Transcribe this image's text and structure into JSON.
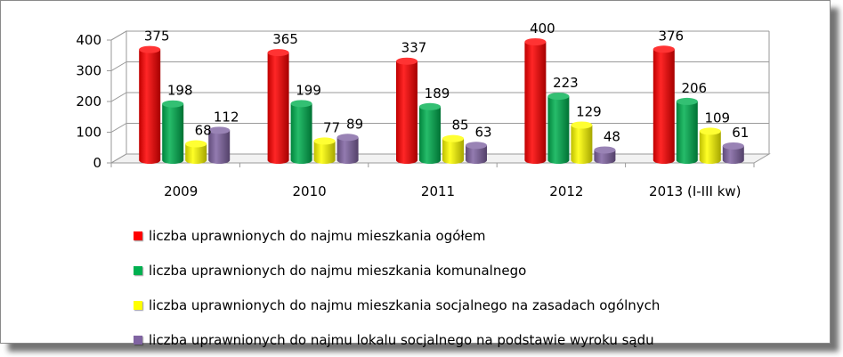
{
  "chart_data": {
    "type": "bar",
    "categories": [
      "2009",
      "2010",
      "2011",
      "2012",
      "2013 (I-III kw)"
    ],
    "series": [
      {
        "name": "liczba uprawnionych do najmu mieszkania ogółem",
        "values": [
          375,
          365,
          337,
          400,
          376
        ],
        "color": "#ff0000"
      },
      {
        "name": "liczba uprawnionych do najmu mieszkania komunalnego",
        "values": [
          198,
          199,
          189,
          223,
          206
        ],
        "color": "#00b050"
      },
      {
        "name": "liczba uprawnionych do najmu mieszkania socjalnego na zasadach ogólnych",
        "values": [
          68,
          77,
          85,
          129,
          109
        ],
        "color": "#ffff00"
      },
      {
        "name": "liczba uprawnionych do najmu lokalu socjalnego na podstawie wyroku sądu",
        "values": [
          112,
          89,
          63,
          48,
          61
        ],
        "color": "#8064a2"
      }
    ],
    "y_ticks": [
      "0",
      "100",
      "200",
      "300",
      "400"
    ],
    "ylim": [
      0,
      400
    ],
    "grid": true,
    "legend_position": "bottom",
    "style": "3d-cylinder"
  }
}
